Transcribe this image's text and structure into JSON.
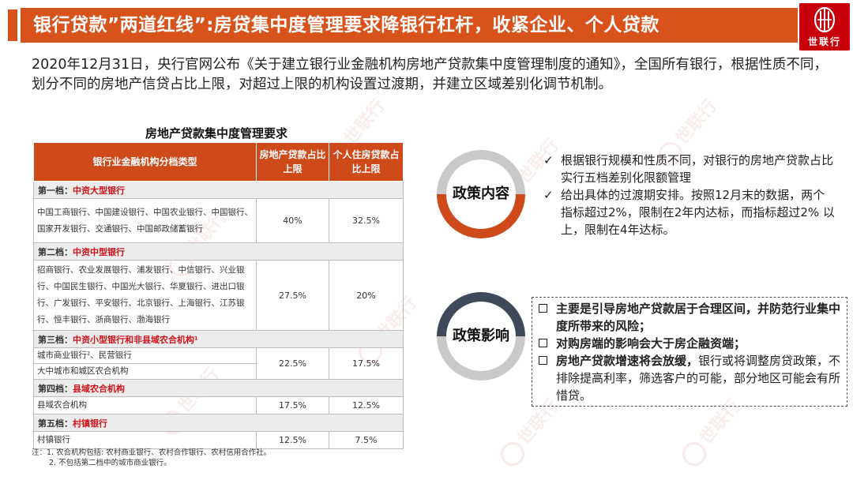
{
  "title": "银行贷款”两道红线”:房贷集中度管理要求降银行杠杆，收紧企业、个人贷款",
  "logo": {
    "text": "世联行",
    "color": "#c7000b"
  },
  "intro": "2020年12月31日，央行官网公布《关于建立银行业金融机构房地产贷款集中度管理制度的通知》，全国所有银行，根据性质不同，划分不同的房地产信贷占比上限，对超过上限的机构设置过渡期，并建立区域差别化调节机制。",
  "table": {
    "title": "房地产贷款集中度管理要求",
    "headers": [
      "银行业金融机构分档类型",
      "房地产贷款占比上限",
      "个人住房贷款占比上限"
    ],
    "tiers": [
      {
        "tier": "第一档：",
        "type": "中资大型银行",
        "banks": "中国工商银行、中国建设银行、中国农业银行、中国银行、国家开发银行、交通银行、中国邮政储蓄银行",
        "re_cap": "40%",
        "mortgage_cap": "32.5%"
      },
      {
        "tier": "第二档：",
        "type": "中资中型银行",
        "banks": "招商银行、农业发展银行、浦发银行、中信银行、兴业银行、中国民生银行、中国光大银行、华夏银行、进出口银行、广发银行、平安银行、北京银行、上海银行、江苏银行、恒丰银行、浙商银行、渤海银行",
        "re_cap": "27.5%",
        "mortgage_cap": "20%"
      },
      {
        "tier": "第三档：",
        "type": "中资小型银行和非县域农合机构¹",
        "banks_line1": "城市商业银行²、民营银行",
        "banks_line2": "大中城市和城区农合机构",
        "re_cap": "22.5%",
        "mortgage_cap": "17.5%"
      },
      {
        "tier": "第四档：",
        "type": "县域农合机构",
        "banks": "县域农合机构",
        "re_cap": "17.5%",
        "mortgage_cap": "12.5%"
      },
      {
        "tier": "第五档：",
        "type": "村镇银行",
        "banks": "村镇银行",
        "re_cap": "12.5%",
        "mortgage_cap": "7.5%"
      }
    ],
    "notes": [
      "注：1. 农合机构包括: 农村商业银行、农村合作银行、农村信用合作社。",
      "2. 不包括第二档中的城市商业银行。"
    ]
  },
  "policy_content": {
    "label": "政策内容",
    "marker": "✓",
    "items": [
      "根据银行规模和性质不同，对银行的房地产贷款占比实行五档差别化限额管理",
      "给出具体的过渡期安排。按照12月末的数据，两个指标超过2%，限制在2年内达标，而指标超过2% 以上，限制在4年达标。"
    ]
  },
  "policy_impact": {
    "label": "政策影响",
    "items": [
      {
        "bold": "主要是引导房地产贷款居于合理区间，并防范行业集中度所带来的风险；",
        "normal": ""
      },
      {
        "bold": "对购房端的影响会大于房企融资端；",
        "normal": ""
      },
      {
        "bold": "房地产贷款增速将会放缓，",
        "normal": "银行或将调整房贷政策，不排除提高利率，筛选客户的可能，部分地区可能会有所惜贷。"
      }
    ]
  },
  "watermark": "世联行",
  "colors": {
    "accent": "#d8531b",
    "header": "#cf4a1a",
    "tier_type": "#d0121b",
    "dark_ring": "#3f4a58",
    "gray_ring": "#c9c9c9"
  }
}
